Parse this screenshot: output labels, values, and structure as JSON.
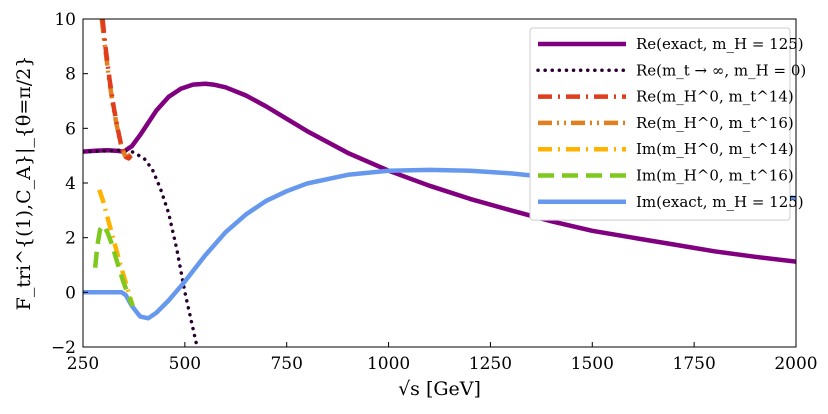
{
  "chart_data": {
    "type": "line",
    "title": "",
    "xlabel": "√s  [GeV]",
    "ylabel": "F_tri^{(1),C_A}|_{θ=π/2}",
    "xlim": [
      250,
      2000
    ],
    "ylim": [
      -2,
      10
    ],
    "x_ticks": [
      250,
      500,
      750,
      1000,
      1250,
      1500,
      1750,
      2000
    ],
    "y_ticks": [
      -2,
      0,
      2,
      4,
      6,
      8,
      10
    ],
    "legend_position": "top-right",
    "series": [
      {
        "name": "Re(exact, m_H = 125)",
        "color": "#800080",
        "style": "solid",
        "x": [
          250,
          280,
          310,
          330,
          350,
          370,
          390,
          410,
          430,
          460,
          490,
          520,
          550,
          570,
          600,
          650,
          700,
          750,
          800,
          900,
          1000,
          1100,
          1200,
          1300,
          1400,
          1500,
          1600,
          1700,
          1800,
          1900,
          2000
        ],
        "y": [
          5.15,
          5.18,
          5.2,
          5.18,
          5.15,
          5.35,
          5.75,
          6.2,
          6.65,
          7.15,
          7.45,
          7.6,
          7.63,
          7.6,
          7.5,
          7.2,
          6.8,
          6.35,
          5.9,
          5.1,
          4.45,
          3.9,
          3.42,
          3.0,
          2.6,
          2.25,
          2.0,
          1.75,
          1.5,
          1.3,
          1.12
        ]
      },
      {
        "name": "Re(m_t → ∞, m_H = 0)",
        "color": "#2a0030",
        "style": "dotted",
        "x": [
          250,
          300,
          340,
          370,
          400,
          420,
          440,
          460,
          480,
          500,
          515,
          530
        ],
        "y": [
          5.15,
          5.17,
          5.2,
          5.15,
          4.9,
          4.5,
          3.8,
          2.9,
          1.6,
          0.0,
          -1.0,
          -2.0
        ]
      },
      {
        "name": "Re(m_H^0, m_t^14)",
        "color": "#e03c1e",
        "style": "dashdot",
        "x": [
          298,
          305,
          315,
          325,
          335,
          345,
          355,
          362,
          368
        ],
        "y": [
          10.0,
          9.0,
          7.8,
          6.8,
          6.0,
          5.3,
          4.95,
          4.9,
          5.0
        ]
      },
      {
        "name": "Re(m_H^0, m_t^16)",
        "color": "#e08020",
        "style": "dashdotdot",
        "x": [
          296,
          303,
          313,
          323,
          333,
          343,
          353,
          360,
          367
        ],
        "y": [
          10.0,
          9.1,
          7.9,
          6.9,
          6.1,
          5.4,
          5.0,
          4.95,
          5.05
        ]
      },
      {
        "name": "Im(m_H^0, m_t^14)",
        "color": "#ffb300",
        "style": "dashdot",
        "x": [
          290,
          300,
          310,
          320,
          330,
          340,
          350,
          360,
          372
        ],
        "y": [
          3.75,
          3.3,
          2.75,
          2.2,
          1.65,
          1.1,
          0.6,
          0.1,
          -0.5
        ]
      },
      {
        "name": "Im(m_H^0, m_t^16)",
        "color": "#7fc81e",
        "style": "dashed",
        "x": [
          280,
          285,
          292,
          300,
          310,
          320,
          330,
          340,
          350,
          360,
          372
        ],
        "y": [
          0.9,
          1.7,
          2.3,
          2.45,
          2.2,
          1.8,
          1.3,
          0.8,
          0.35,
          -0.05,
          -0.5
        ]
      },
      {
        "name": "Im(exact, m_H = 125)",
        "color": "#6699ee",
        "style": "solid",
        "x": [
          250,
          300,
          345,
          355,
          370,
          390,
          410,
          430,
          460,
          500,
          550,
          600,
          650,
          700,
          750,
          800,
          900,
          1000,
          1100,
          1200,
          1300,
          1400,
          1500,
          1600,
          1700,
          1800,
          1900,
          2000
        ],
        "y": [
          0.0,
          0.0,
          0.0,
          -0.1,
          -0.5,
          -0.88,
          -0.95,
          -0.75,
          -0.3,
          0.4,
          1.35,
          2.2,
          2.85,
          3.35,
          3.7,
          3.98,
          4.3,
          4.45,
          4.48,
          4.45,
          4.35,
          4.2,
          4.05,
          3.9,
          3.77,
          3.65,
          3.55,
          3.45
        ]
      }
    ]
  }
}
